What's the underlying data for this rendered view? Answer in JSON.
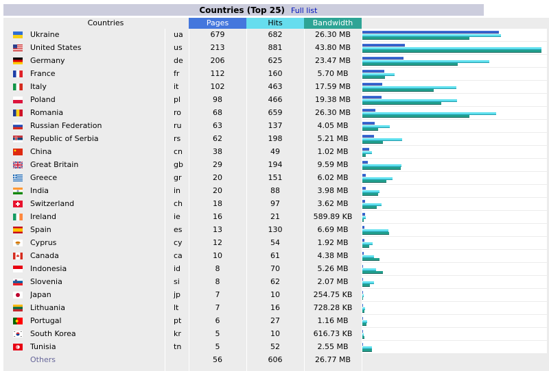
{
  "title": "Countries (Top 25)",
  "title_separator": "-",
  "full_list_link": "Full list",
  "headers": {
    "countries": "Countries",
    "pages": "Pages",
    "hits": "Hits",
    "bandwidth": "Bandwidth"
  },
  "colors": {
    "pages": "#4477dd",
    "hits": "#66ddee",
    "bandwidth": "#2ea495",
    "title_bar": "#cccddd",
    "link": "#0011bb"
  },
  "rows": [
    {
      "flag": "ukraine-flag",
      "country": "Ukraine",
      "code": "ua",
      "pages": 679,
      "hits": 682,
      "bandwidth": "26.30 MB",
      "bw_mb": 26.3
    },
    {
      "flag": "united-states-flag",
      "country": "United States",
      "code": "us",
      "pages": 213,
      "hits": 881,
      "bandwidth": "43.80 MB",
      "bw_mb": 43.8
    },
    {
      "flag": "germany-flag",
      "country": "Germany",
      "code": "de",
      "pages": 206,
      "hits": 625,
      "bandwidth": "23.47 MB",
      "bw_mb": 23.47
    },
    {
      "flag": "france-flag",
      "country": "France",
      "code": "fr",
      "pages": 112,
      "hits": 160,
      "bandwidth": "5.70 MB",
      "bw_mb": 5.7
    },
    {
      "flag": "italy-flag",
      "country": "Italy",
      "code": "it",
      "pages": 102,
      "hits": 463,
      "bandwidth": "17.59 MB",
      "bw_mb": 17.59
    },
    {
      "flag": "poland-flag",
      "country": "Poland",
      "code": "pl",
      "pages": 98,
      "hits": 466,
      "bandwidth": "19.38 MB",
      "bw_mb": 19.38
    },
    {
      "flag": "romania-flag",
      "country": "Romania",
      "code": "ro",
      "pages": 68,
      "hits": 659,
      "bandwidth": "26.30 MB",
      "bw_mb": 26.3
    },
    {
      "flag": "russia-flag",
      "country": "Russian Federation",
      "code": "ru",
      "pages": 63,
      "hits": 137,
      "bandwidth": "4.05 MB",
      "bw_mb": 4.05
    },
    {
      "flag": "serbia-flag",
      "country": "Republic of Serbia",
      "code": "rs",
      "pages": 62,
      "hits": 198,
      "bandwidth": "5.21 MB",
      "bw_mb": 5.21
    },
    {
      "flag": "china-flag",
      "country": "China",
      "code": "cn",
      "pages": 38,
      "hits": 49,
      "bandwidth": "1.02 MB",
      "bw_mb": 1.02
    },
    {
      "flag": "great-britain-flag",
      "country": "Great Britain",
      "code": "gb",
      "pages": 29,
      "hits": 194,
      "bandwidth": "9.59 MB",
      "bw_mb": 9.59
    },
    {
      "flag": "greece-flag",
      "country": "Greece",
      "code": "gr",
      "pages": 20,
      "hits": 151,
      "bandwidth": "6.02 MB",
      "bw_mb": 6.02
    },
    {
      "flag": "india-flag",
      "country": "India",
      "code": "in",
      "pages": 20,
      "hits": 88,
      "bandwidth": "3.98 MB",
      "bw_mb": 3.98
    },
    {
      "flag": "switzerland-flag",
      "country": "Switzerland",
      "code": "ch",
      "pages": 18,
      "hits": 97,
      "bandwidth": "3.62 MB",
      "bw_mb": 3.62
    },
    {
      "flag": "ireland-flag",
      "country": "Ireland",
      "code": "ie",
      "pages": 16,
      "hits": 21,
      "bandwidth": "589.89 KB",
      "bw_mb": 0.576
    },
    {
      "flag": "spain-flag",
      "country": "Spain",
      "code": "es",
      "pages": 13,
      "hits": 130,
      "bandwidth": "6.69 MB",
      "bw_mb": 6.69
    },
    {
      "flag": "cyprus-flag",
      "country": "Cyprus",
      "code": "cy",
      "pages": 12,
      "hits": 54,
      "bandwidth": "1.92 MB",
      "bw_mb": 1.92
    },
    {
      "flag": "canada-flag",
      "country": "Canada",
      "code": "ca",
      "pages": 10,
      "hits": 61,
      "bandwidth": "4.38 MB",
      "bw_mb": 4.38
    },
    {
      "flag": "indonesia-flag",
      "country": "Indonesia",
      "code": "id",
      "pages": 8,
      "hits": 70,
      "bandwidth": "5.26 MB",
      "bw_mb": 5.26
    },
    {
      "flag": "slovenia-flag",
      "country": "Slovenia",
      "code": "si",
      "pages": 8,
      "hits": 62,
      "bandwidth": "2.07 MB",
      "bw_mb": 2.07
    },
    {
      "flag": "japan-flag",
      "country": "Japan",
      "code": "jp",
      "pages": 7,
      "hits": 10,
      "bandwidth": "254.75 KB",
      "bw_mb": 0.249
    },
    {
      "flag": "lithuania-flag",
      "country": "Lithuania",
      "code": "lt",
      "pages": 7,
      "hits": 16,
      "bandwidth": "728.28 KB",
      "bw_mb": 0.711
    },
    {
      "flag": "portugal-flag",
      "country": "Portugal",
      "code": "pt",
      "pages": 6,
      "hits": 27,
      "bandwidth": "1.16 MB",
      "bw_mb": 1.16
    },
    {
      "flag": "south-korea-flag",
      "country": "South Korea",
      "code": "kr",
      "pages": 5,
      "hits": 10,
      "bandwidth": "616.73 KB",
      "bw_mb": 0.602
    },
    {
      "flag": "tunisia-flag",
      "country": "Tunisia",
      "code": "tn",
      "pages": 5,
      "hits": 52,
      "bandwidth": "2.55 MB",
      "bw_mb": 2.55
    }
  ],
  "others": {
    "country": "Others",
    "pages": 56,
    "hits": 606,
    "bandwidth": "26.77 MB"
  }
}
